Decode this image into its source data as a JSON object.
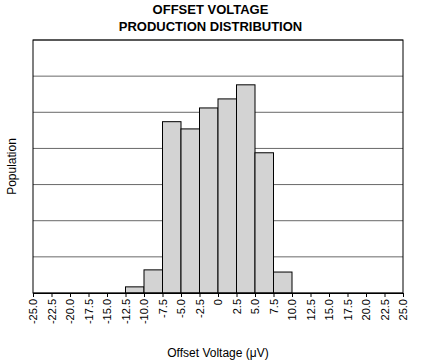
{
  "chart_data": {
    "type": "histogram",
    "title": "OFFSET VOLTAGE",
    "subtitle": "PRODUCTION DISTRIBUTION",
    "x_label": "Offset Voltage (μV)",
    "y_label": "Population",
    "bins": [
      -12.5,
      -10,
      -7.5,
      -5,
      -2.5,
      0,
      2.5,
      5,
      7.5,
      10
    ],
    "values": [
      0.17,
      0.64,
      4.74,
      4.54,
      5.12,
      5.37,
      5.76,
      3.88,
      0.58
    ],
    "color": "#d3d3d3",
    "xlim": [
      -25,
      25
    ],
    "xticks": [
      {
        "value": -25,
        "label": "-25.0"
      },
      -22.5,
      {
        "value": -20,
        "label": "-20.0"
      },
      -17.5,
      {
        "value": -15,
        "label": "-15.0"
      },
      -12.5,
      {
        "value": -10,
        "label": "-10.0"
      },
      -7.5,
      {
        "value": -5,
        "label": "-5.0"
      },
      -2.5,
      0,
      2.5,
      {
        "value": 5,
        "label": "5.0"
      },
      7.5,
      {
        "value": 10,
        "label": "10.0"
      },
      12.5,
      {
        "value": 15,
        "label": "15.0"
      },
      17.5,
      {
        "value": 20,
        "label": "20.0"
      },
      22.5,
      {
        "value": 25,
        "label": "25.0"
      }
    ],
    "ylim": [
      0,
      7
    ],
    "yticks": [
      0,
      1,
      2,
      3,
      4,
      5,
      6,
      7
    ],
    "grid": true,
    "tick_labels": "x"
  }
}
